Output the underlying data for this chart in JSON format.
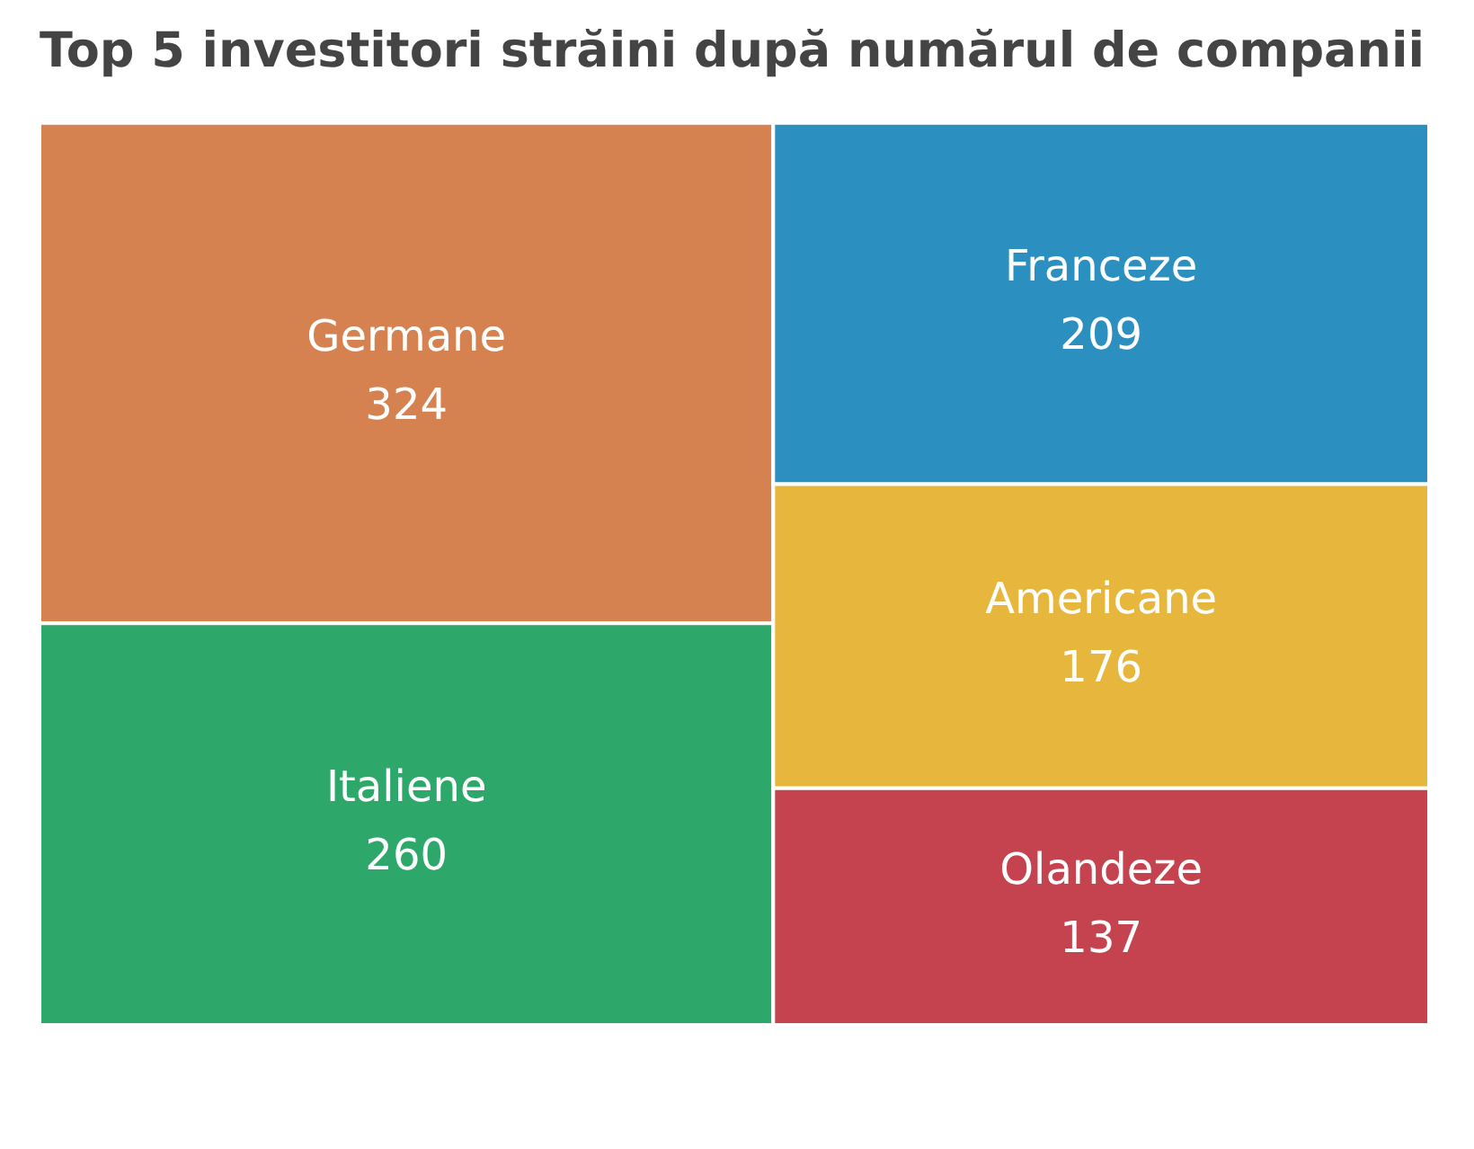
{
  "chart_data": {
    "type": "other",
    "title": "Top 5 investitori străini după numărul de companii",
    "categories": [
      "Germane",
      "Italiene",
      "Franceze",
      "Americane",
      "Olandeze"
    ],
    "values": [
      324,
      260,
      209,
      176,
      137
    ],
    "colors": [
      "#d58150",
      "#2ea86a",
      "#2b8fc0",
      "#e6b73c",
      "#c5434f"
    ],
    "data_labels": true,
    "legend": false
  }
}
